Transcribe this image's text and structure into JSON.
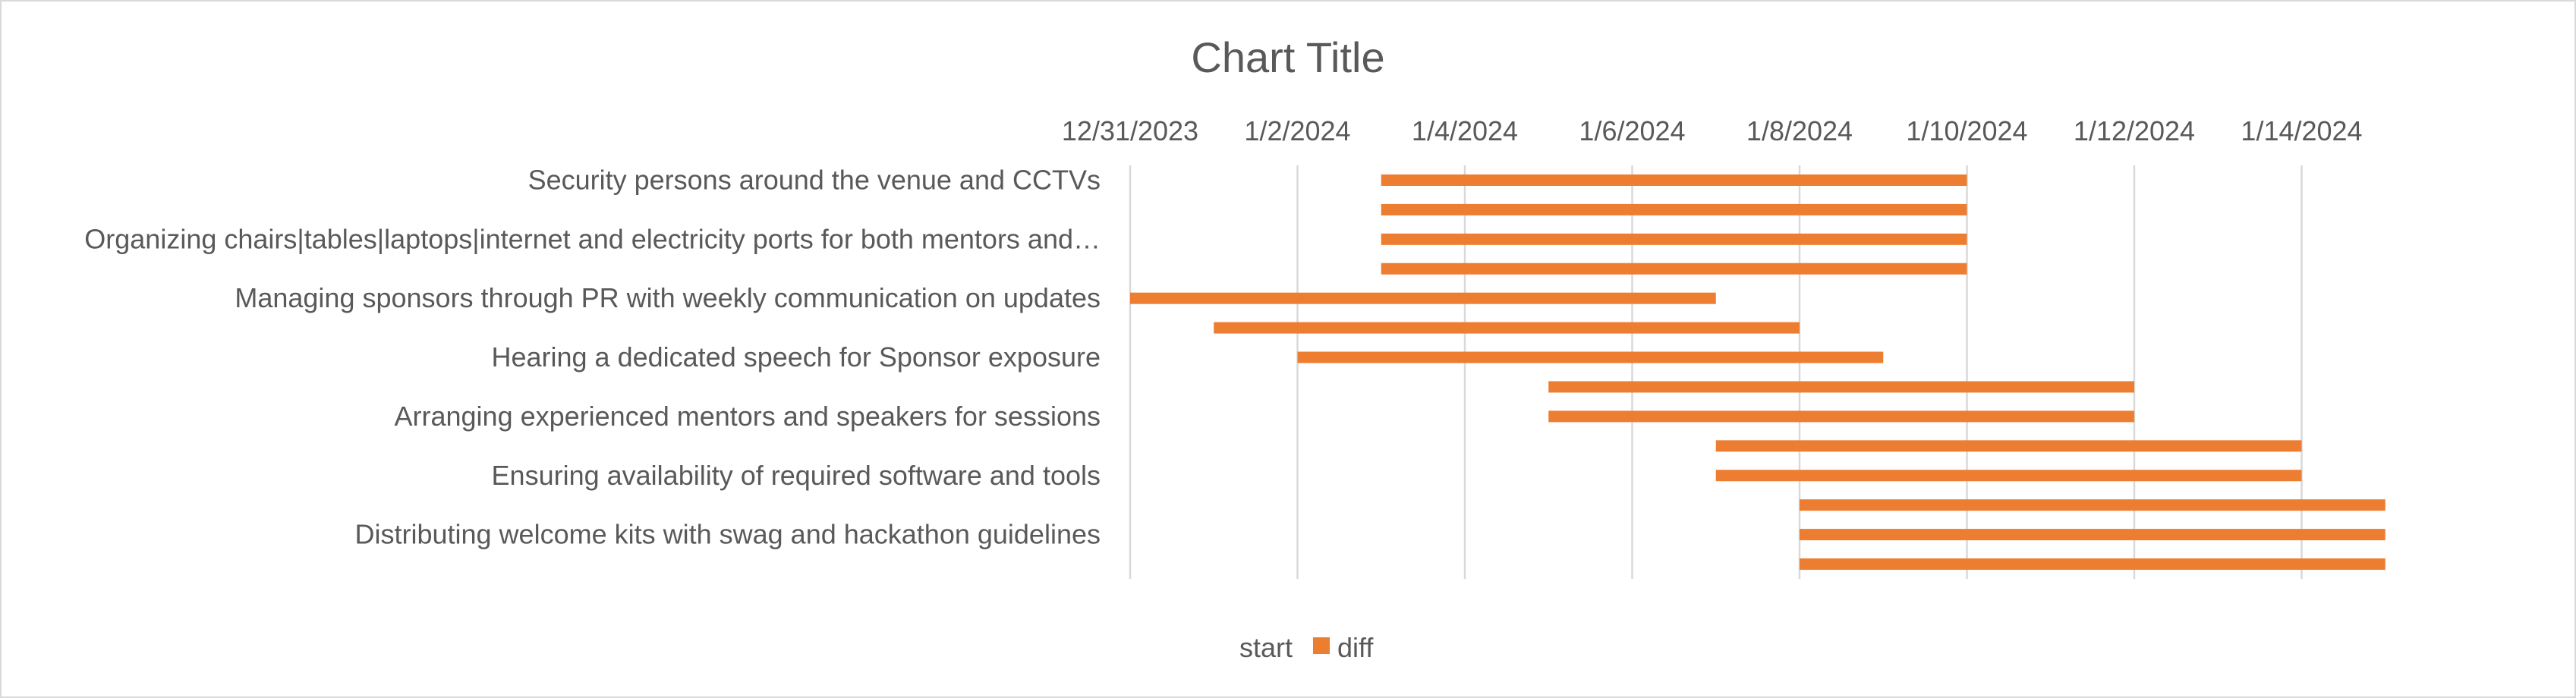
{
  "chart_data": {
    "type": "bar",
    "orientation": "horizontal-gantt",
    "title": "Chart Title",
    "x_tick_labels": [
      "12/31/2023",
      "1/2/2024",
      "1/4/2024",
      "1/6/2024",
      "1/8/2024",
      "1/10/2024",
      "1/12/2024",
      "1/14/2024"
    ],
    "xlim": [
      "2023-12-31",
      "2024-01-16"
    ],
    "category_labels": [
      "Security persons around the venue and CCTVs",
      "Organizing chairs|tables|laptops|internet and electricity ports for both mentors and…",
      "Managing sponsors through PR with weekly communication on updates",
      "Hearing a dedicated speech for Sponsor exposure",
      "Arranging experienced mentors and speakers for sessions",
      "Ensuring availability of required software and tools",
      "Distributing welcome kits with swag and hackathon guidelines"
    ],
    "tasks": [
      {
        "start": "2024-01-03",
        "end": "2024-01-10"
      },
      {
        "start": "2024-01-03",
        "end": "2024-01-10"
      },
      {
        "start": "2024-01-03",
        "end": "2024-01-10"
      },
      {
        "start": "2024-01-03",
        "end": "2024-01-10"
      },
      {
        "start": "2023-12-31",
        "end": "2024-01-07"
      },
      {
        "start": "2024-01-01",
        "end": "2024-01-08"
      },
      {
        "start": "2024-01-02",
        "end": "2024-01-09"
      },
      {
        "start": "2024-01-05",
        "end": "2024-01-12"
      },
      {
        "start": "2024-01-05",
        "end": "2024-01-12"
      },
      {
        "start": "2024-01-07",
        "end": "2024-01-14"
      },
      {
        "start": "2024-01-07",
        "end": "2024-01-14"
      },
      {
        "start": "2024-01-08",
        "end": "2024-01-15"
      },
      {
        "start": "2024-01-08",
        "end": "2024-01-15"
      },
      {
        "start": "2024-01-08",
        "end": "2024-01-15"
      }
    ],
    "series": [
      {
        "name": "start",
        "color": "none"
      },
      {
        "name": "diff",
        "color": "#ED7D31"
      }
    ],
    "grid": true,
    "legend_position": "bottom"
  }
}
